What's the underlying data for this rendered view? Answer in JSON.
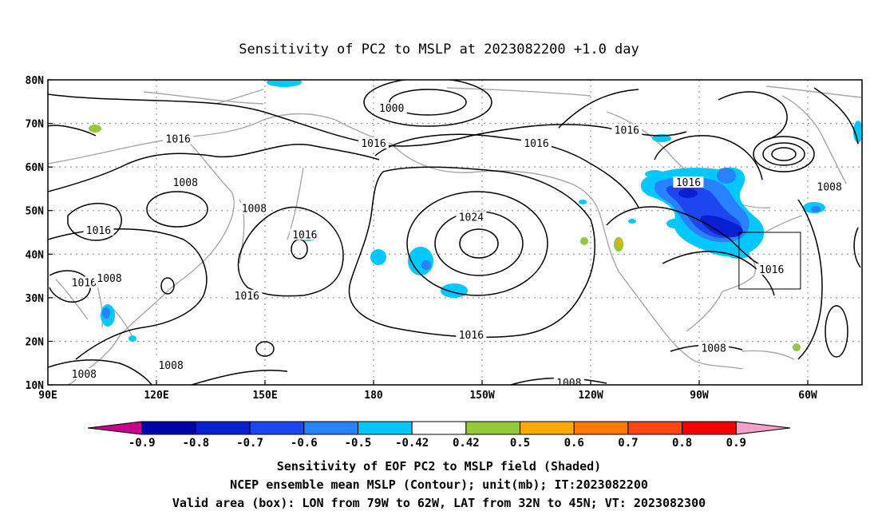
{
  "title": "Sensitivity of PC2 to MSLP at 2023082200 +1.0 day",
  "map": {
    "lat_ticks": [
      {
        "value": 80,
        "label": "80N"
      },
      {
        "value": 70,
        "label": "70N"
      },
      {
        "value": 60,
        "label": "60N"
      },
      {
        "value": 50,
        "label": "50N"
      },
      {
        "value": 40,
        "label": "40N"
      },
      {
        "value": 30,
        "label": "30N"
      },
      {
        "value": 20,
        "label": "20N"
      },
      {
        "value": 10,
        "label": "10N"
      }
    ],
    "lon_ticks": [
      {
        "value": 90,
        "label": "90E"
      },
      {
        "value": 120,
        "label": "120E"
      },
      {
        "value": 150,
        "label": "150E"
      },
      {
        "value": 180,
        "label": "180"
      },
      {
        "value": 210,
        "label": "150W"
      },
      {
        "value": 240,
        "label": "120W"
      },
      {
        "value": 270,
        "label": "90W"
      },
      {
        "value": 300,
        "label": "60W"
      }
    ],
    "extent": {
      "lon_min": 90,
      "lon_max": 315,
      "lat_min": 10,
      "lat_max": 80
    },
    "valid_box": {
      "lon_west": 281,
      "lon_east": 298,
      "lat_south": 32,
      "lat_north": 45
    },
    "contour_labels": [
      {
        "text": "1000",
        "lon": 185,
        "lat": 73
      },
      {
        "text": "1016",
        "lon": 250,
        "lat": 68
      },
      {
        "text": "1016",
        "lon": 126,
        "lat": 66
      },
      {
        "text": "1016",
        "lon": 180,
        "lat": 65
      },
      {
        "text": "1016",
        "lon": 225,
        "lat": 65
      },
      {
        "text": "1016",
        "lon": 267,
        "lat": 56
      },
      {
        "text": "1008",
        "lon": 128,
        "lat": 56
      },
      {
        "text": "1008",
        "lon": 306,
        "lat": 55
      },
      {
        "text": "1008",
        "lon": 147,
        "lat": 50
      },
      {
        "text": "1024",
        "lon": 207,
        "lat": 48
      },
      {
        "text": "1016",
        "lon": 104,
        "lat": 45
      },
      {
        "text": "1016",
        "lon": 161,
        "lat": 44
      },
      {
        "text": "1016",
        "lon": 290,
        "lat": 36
      },
      {
        "text": "1016",
        "lon": 100,
        "lat": 33
      },
      {
        "text": "1008",
        "lon": 107,
        "lat": 34
      },
      {
        "text": "1016",
        "lon": 145,
        "lat": 30
      },
      {
        "text": "1016",
        "lon": 207,
        "lat": 21
      },
      {
        "text": "1008",
        "lon": 274,
        "lat": 18
      },
      {
        "text": "1008",
        "lon": 100,
        "lat": 12
      },
      {
        "text": "1008",
        "lon": 124,
        "lat": 14
      },
      {
        "text": "1008",
        "lon": 234,
        "lat": 10
      }
    ]
  },
  "colorbar": {
    "colors": [
      "#c8008c",
      "#0000aa",
      "#0a1ed2",
      "#1e46f0",
      "#2882ff",
      "#00c8ff",
      "#ffffff",
      "#96c83c",
      "#ffaa00",
      "#ff7800",
      "#ff4614",
      "#f00000",
      "#f5a0c8"
    ],
    "labels": [
      "-0.9",
      "-0.8",
      "-0.7",
      "-0.6",
      "-0.5",
      "-0.42",
      "0.42",
      "0.5",
      "0.6",
      "0.7",
      "0.8",
      "0.9"
    ]
  },
  "captions": [
    "Sensitivity of EOF PC2 to MSLP field (Shaded)",
    "NCEP ensemble mean MSLP (Contour); unit(mb); IT:2023082200",
    "Valid area (box): LON from 79W to 62W, LAT from 32N to 45N; VT: 2023082300"
  ]
}
